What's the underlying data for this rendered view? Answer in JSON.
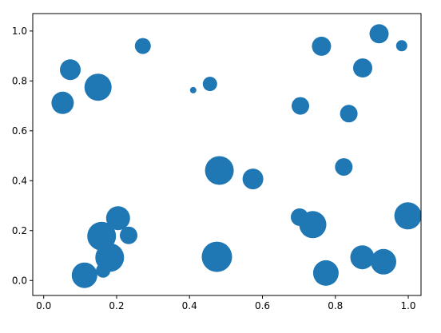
{
  "chart_data": {
    "type": "scatter",
    "title": "",
    "xlabel": "",
    "ylabel": "",
    "xlim": [
      -0.03,
      1.035
    ],
    "ylim": [
      -0.06,
      1.07
    ],
    "grid": false,
    "legend": "none",
    "xticks": [
      0.0,
      0.2,
      0.4,
      0.6,
      0.8,
      1.0
    ],
    "xtick_labels": [
      "0.0",
      "0.2",
      "0.4",
      "0.6",
      "0.8",
      "1.0"
    ],
    "yticks": [
      0.0,
      0.2,
      0.4,
      0.6,
      0.8,
      1.0
    ],
    "ytick_labels": [
      "0.0",
      "0.2",
      "0.4",
      "0.6",
      "0.8",
      "1.0"
    ],
    "marker_color": "#1f77b4",
    "points": [
      {
        "x": 0.052,
        "y": 0.712,
        "size": 14
      },
      {
        "x": 0.073,
        "y": 0.845,
        "size": 13
      },
      {
        "x": 0.149,
        "y": 0.775,
        "size": 17
      },
      {
        "x": 0.272,
        "y": 0.94,
        "size": 10
      },
      {
        "x": 0.41,
        "y": 0.763,
        "size": 4
      },
      {
        "x": 0.456,
        "y": 0.788,
        "size": 9
      },
      {
        "x": 0.482,
        "y": 0.441,
        "size": 18
      },
      {
        "x": 0.574,
        "y": 0.407,
        "size": 13
      },
      {
        "x": 0.704,
        "y": 0.7,
        "size": 11
      },
      {
        "x": 0.762,
        "y": 0.939,
        "size": 12
      },
      {
        "x": 0.837,
        "y": 0.669,
        "size": 11
      },
      {
        "x": 0.823,
        "y": 0.455,
        "size": 11
      },
      {
        "x": 0.875,
        "y": 0.852,
        "size": 12
      },
      {
        "x": 0.92,
        "y": 0.989,
        "size": 12
      },
      {
        "x": 0.982,
        "y": 0.941,
        "size": 7
      },
      {
        "x": 0.999,
        "y": 0.259,
        "size": 17
      },
      {
        "x": 0.702,
        "y": 0.254,
        "size": 11
      },
      {
        "x": 0.738,
        "y": 0.224,
        "size": 17
      },
      {
        "x": 0.874,
        "y": 0.093,
        "size": 15
      },
      {
        "x": 0.932,
        "y": 0.075,
        "size": 16
      },
      {
        "x": 0.774,
        "y": 0.03,
        "size": 16
      },
      {
        "x": 0.475,
        "y": 0.095,
        "size": 19
      },
      {
        "x": 0.204,
        "y": 0.25,
        "size": 15
      },
      {
        "x": 0.233,
        "y": 0.181,
        "size": 11
      },
      {
        "x": 0.159,
        "y": 0.178,
        "size": 18
      },
      {
        "x": 0.181,
        "y": 0.092,
        "size": 18
      },
      {
        "x": 0.163,
        "y": 0.04,
        "size": 9
      },
      {
        "x": 0.112,
        "y": 0.021,
        "size": 16
      }
    ]
  }
}
